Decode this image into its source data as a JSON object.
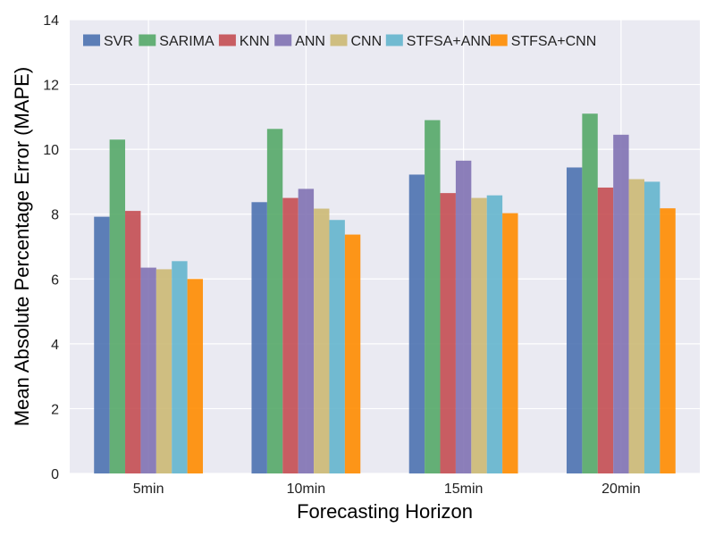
{
  "chart_data": {
    "type": "bar",
    "xlabel": "Forecasting Horizon",
    "ylabel": "Mean Absolute Percentage Error (MAPE)",
    "categories": [
      "5min",
      "10min",
      "15min",
      "20min"
    ],
    "ylim": [
      0,
      14
    ],
    "yticks": [
      "0",
      "2",
      "4",
      "6",
      "8",
      "10",
      "12",
      "14"
    ],
    "grid": true,
    "legend_position": "top",
    "background": "#eaeaf2",
    "series": [
      {
        "name": "SVR",
        "color": "#4c72b0",
        "values": [
          7.92,
          8.37,
          9.22,
          9.44
        ]
      },
      {
        "name": "SARIMA",
        "color": "#55a868",
        "values": [
          10.3,
          10.63,
          10.9,
          11.1
        ]
      },
      {
        "name": "KNN",
        "color": "#c44e52",
        "values": [
          8.1,
          8.5,
          8.65,
          8.82
        ]
      },
      {
        "name": "ANN",
        "color": "#8172b2",
        "values": [
          6.35,
          8.78,
          9.65,
          10.45
        ]
      },
      {
        "name": "CNN",
        "color": "#ccb974",
        "values": [
          6.3,
          8.17,
          8.5,
          9.08
        ]
      },
      {
        "name": "STFSA+ANN",
        "color": "#64b5cd",
        "values": [
          6.55,
          7.82,
          8.58,
          9.0
        ]
      },
      {
        "name": "STFSA+CNN",
        "color": "#ff8c00",
        "values": [
          6.0,
          7.37,
          8.03,
          8.18
        ]
      }
    ]
  }
}
